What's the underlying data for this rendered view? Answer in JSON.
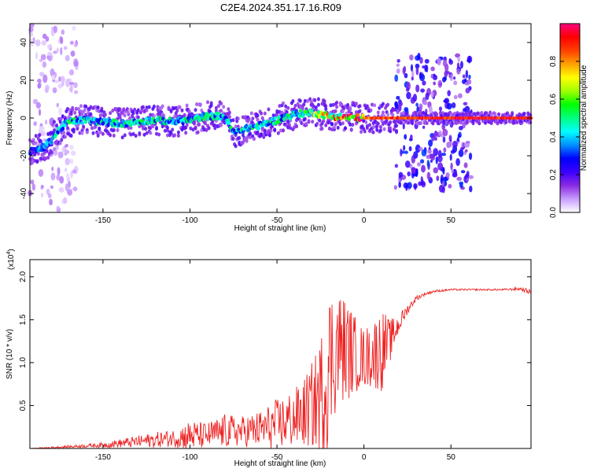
{
  "figure": {
    "title": "C2E4.2024.351.17.16.R09"
  },
  "chart_data": [
    {
      "type": "heatmap",
      "xlabel": "Height of straight line (km)",
      "ylabel": "Frequency (Hz)",
      "xlim": [
        -192,
        96
      ],
      "ylim": [
        -50,
        50
      ],
      "xticks": [
        -150,
        -100,
        -50,
        0,
        50
      ],
      "yticks": [
        -40,
        -20,
        0,
        20,
        40
      ],
      "grid": false,
      "colorbar": {
        "label": "Normalized spectral amplitude",
        "ticks": [
          0.0,
          0.2,
          0.4,
          0.6,
          0.8
        ],
        "range": [
          0,
          1
        ],
        "colors": [
          "#ffffff",
          "#c89cff",
          "#8a2be2",
          "#3a00ff",
          "#0000ff",
          "#0090ff",
          "#00ffff",
          "#00ff80",
          "#00ff00",
          "#a0ff00",
          "#ffff00",
          "#ffa000",
          "#ff4000",
          "#ff0000",
          "#ff0080"
        ]
      },
      "ridge": {
        "description_x": [
          -192,
          -185,
          -180,
          -175,
          -170,
          -160,
          -150,
          -140,
          -130,
          -120,
          -110,
          -100,
          -90,
          -80,
          -75,
          -70,
          -60,
          -50,
          -40,
          -30,
          -25,
          -20,
          -10,
          0,
          10,
          20,
          30,
          40,
          50,
          60,
          70,
          80,
          96
        ],
        "description_y": [
          -18,
          -16,
          -12,
          -6,
          -2,
          -1,
          -2,
          -3,
          -2,
          -1,
          -2,
          -1,
          1,
          1,
          -8,
          -6,
          -4,
          -1,
          2,
          3,
          2,
          1,
          0.5,
          0,
          0,
          0,
          0,
          0,
          0,
          0,
          0,
          0,
          0
        ],
        "peak_amplitude": [
          0.3,
          0.35,
          0.4,
          0.45,
          0.45,
          0.45,
          0.45,
          0.45,
          0.45,
          0.45,
          0.45,
          0.45,
          0.45,
          0.45,
          0.45,
          0.45,
          0.45,
          0.45,
          0.5,
          0.55,
          0.65,
          0.7,
          0.85,
          0.85,
          0.9,
          0.9,
          0.95,
          0.95,
          0.95,
          0.95,
          0.95,
          0.95,
          0.95
        ]
      },
      "scatter_regions": [
        {
          "x_from": -192,
          "x_to": -165,
          "y_from": -50,
          "y_to": 50,
          "amplitude": 0.05
        },
        {
          "x_from": 18,
          "x_to": 62,
          "y_from": -38,
          "y_to": 34,
          "amplitude": 0.15
        }
      ]
    },
    {
      "type": "line",
      "xlabel": "Height of straight line (km)",
      "ylabel": "SNR (10 * v/v)",
      "y_multiplier": "(x10",
      "y_multiplier_exponent": "4",
      "y_multiplier_close": ")",
      "xlim": [
        -192,
        96
      ],
      "ylim": [
        0,
        2.2
      ],
      "xticks": [
        -150,
        -100,
        -50,
        0,
        50
      ],
      "yticks": [
        0.5,
        1.0,
        1.5,
        2.0
      ],
      "ytick_labels": [
        "0.5",
        "1.0",
        "1.5",
        "2.0"
      ],
      "grid": false,
      "series": [
        {
          "color": "#ee2222",
          "x": [
            -192,
            -180,
            -170,
            -160,
            -150,
            -140,
            -130,
            -120,
            -110,
            -100,
            -90,
            -80,
            -70,
            -60,
            -50,
            -40,
            -35,
            -30,
            -25,
            -22,
            -20,
            -15,
            -10,
            -5,
            0,
            5,
            10,
            15,
            20,
            25,
            30,
            35,
            40,
            50,
            60,
            70,
            80,
            90,
            96
          ],
          "values": [
            0.0,
            0.01,
            0.02,
            0.03,
            0.04,
            0.06,
            0.08,
            0.1,
            0.12,
            0.15,
            0.15,
            0.2,
            0.2,
            0.22,
            0.28,
            0.35,
            0.4,
            0.5,
            0.6,
            0.8,
            1.0,
            1.2,
            1.15,
            1.1,
            1.05,
            1.1,
            1.15,
            1.25,
            1.45,
            1.62,
            1.75,
            1.8,
            1.83,
            1.85,
            1.85,
            1.85,
            1.85,
            1.86,
            1.82
          ],
          "noise": [
            0.0,
            0.01,
            0.015,
            0.02,
            0.03,
            0.05,
            0.07,
            0.09,
            0.1,
            0.18,
            0.15,
            0.2,
            0.18,
            0.22,
            0.3,
            0.35,
            0.4,
            0.5,
            0.7,
            0.9,
            0.9,
            0.7,
            0.6,
            0.45,
            0.35,
            0.4,
            0.5,
            0.25,
            0.12,
            0.06,
            0.03,
            0.02,
            0.015,
            0.01,
            0.01,
            0.01,
            0.01,
            0.02,
            0.03
          ]
        }
      ]
    }
  ]
}
